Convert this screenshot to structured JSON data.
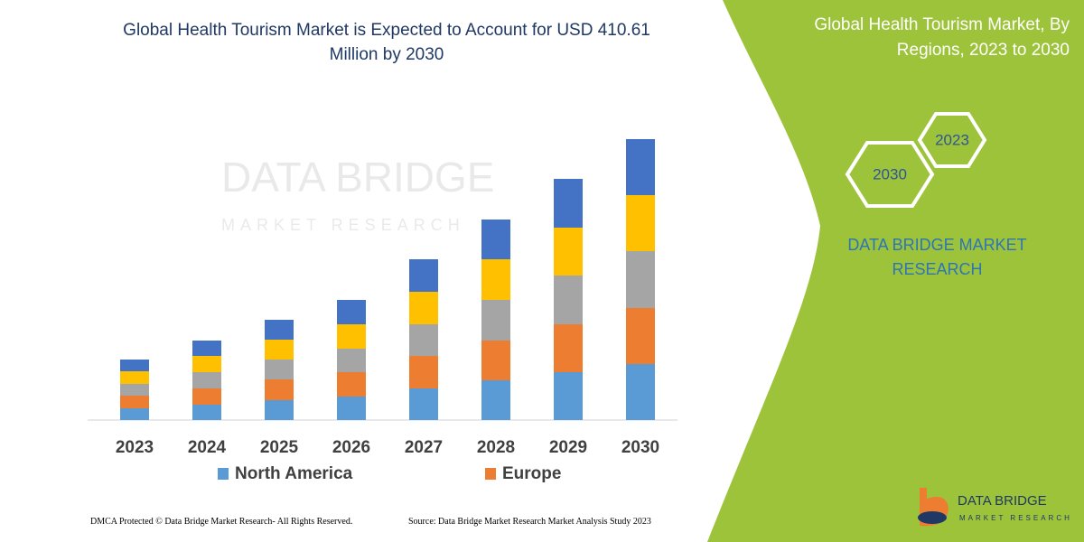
{
  "chart_data": {
    "type": "stacked-bar",
    "title": "Global Health Tourism Market is Expected to Account for USD 410.61 Million by 2030",
    "categories": [
      "2023",
      "2024",
      "2025",
      "2026",
      "2027",
      "2028",
      "2029",
      "2030"
    ],
    "series": [
      {
        "name": "North America",
        "color": "#5b9bd5",
        "values": [
          13,
          17,
          22,
          26,
          35,
          44,
          53,
          62
        ]
      },
      {
        "name": "Europe",
        "color": "#ed7d31",
        "values": [
          14,
          18,
          23,
          27,
          36,
          44,
          53,
          62
        ]
      },
      {
        "color": "#a5a5a5",
        "values": [
          13,
          18,
          22,
          26,
          35,
          45,
          54,
          63
        ]
      },
      {
        "color": "#ffc000",
        "values": [
          14,
          18,
          22,
          27,
          36,
          45,
          53,
          62
        ]
      },
      {
        "color": "#4472c4",
        "values": [
          13,
          17,
          22,
          27,
          36,
          44,
          54,
          62
        ]
      }
    ]
  },
  "panel": {
    "title": "Global Health Tourism Market, By Regions, 2023 to 2030",
    "hexagons": [
      "2023",
      "2030"
    ],
    "brand": "DATA BRIDGE MARKET RESEARCH"
  },
  "footer": {
    "copyright": "DMCA Protected © Data Bridge Market Research-  All Rights Reserved.",
    "source": "Source: Data Bridge Market Research  Market Analysis Study 2023"
  },
  "logo": {
    "name": "DATA BRIDGE",
    "tagline": "MARKET RESEARCH"
  }
}
